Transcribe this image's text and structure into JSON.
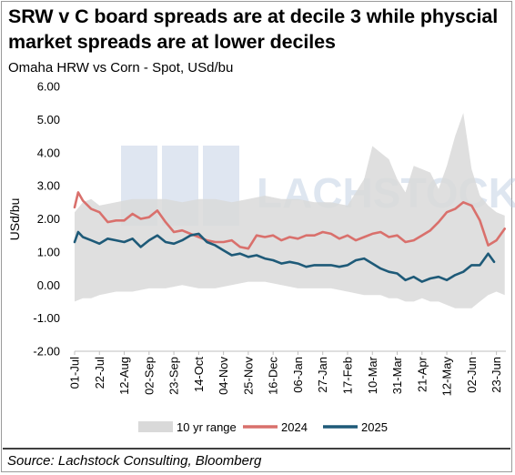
{
  "title": "SRW v C board spreads are at decile 3 while physcial market spreads are at lower deciles",
  "subtitle": "Omaha HRW vs Corn - Spot, USd/bu",
  "source": "Source: Lachstock Consulting, Bloomberg",
  "watermark": "LACHSTOCK",
  "colors": {
    "range": "#d9d9d9",
    "s2024": "#d9706c",
    "s2025": "#1e5a78",
    "watermark": "#b8c8e0"
  },
  "chart_data": {
    "type": "line",
    "ylabel": "USd/bu",
    "ylim": [
      -2,
      6
    ],
    "yticks": [
      "-2.00",
      "-1.00",
      "0.00",
      "1.00",
      "2.00",
      "3.00",
      "4.00",
      "5.00",
      "6.00"
    ],
    "x_days": 365,
    "x_tick_days": [
      0,
      21,
      42,
      63,
      84,
      105,
      126,
      147,
      168,
      189,
      210,
      231,
      252,
      273,
      294,
      315,
      336,
      357
    ],
    "x_tick_labels": [
      "01-Jul",
      "22-Jul",
      "12-Aug",
      "02-Sep",
      "23-Sep",
      "14-Oct",
      "04-Nov",
      "25-Nov",
      "16-Dec",
      "06-Jan",
      "27-Jan",
      "17-Feb",
      "10-Mar",
      "31-Mar",
      "21-Apr",
      "12-May",
      "02-Jun",
      "23-Jun"
    ],
    "legend_placement": "bottom",
    "series": [
      {
        "name": "10 yr range",
        "kind": "band",
        "x": [
          0,
          7,
          14,
          21,
          35,
          49,
          63,
          77,
          91,
          105,
          119,
          133,
          147,
          161,
          175,
          189,
          203,
          217,
          231,
          245,
          252,
          259,
          266,
          273,
          280,
          287,
          294,
          301,
          308,
          315,
          322,
          329,
          336,
          343,
          350,
          357,
          364
        ],
        "low": [
          -0.5,
          -0.4,
          -0.4,
          -0.3,
          -0.2,
          -0.2,
          -0.1,
          -0.1,
          0.0,
          -0.1,
          -0.1,
          0.0,
          0.1,
          0.1,
          0.0,
          -0.1,
          -0.1,
          -0.1,
          -0.2,
          -0.3,
          -0.3,
          -0.3,
          -0.4,
          -0.4,
          -0.5,
          -0.5,
          -0.4,
          -0.5,
          -0.5,
          -0.6,
          -0.7,
          -0.7,
          -0.7,
          -0.5,
          -0.3,
          -0.2,
          -0.3
        ],
        "high": [
          2.2,
          2.5,
          2.6,
          2.4,
          2.5,
          2.6,
          2.6,
          2.6,
          2.5,
          2.6,
          2.6,
          2.5,
          2.6,
          2.7,
          2.6,
          2.6,
          2.5,
          2.5,
          2.4,
          3.2,
          4.2,
          4.0,
          3.8,
          3.2,
          2.8,
          3.6,
          3.5,
          3.4,
          2.9,
          3.6,
          4.5,
          5.2,
          3.5,
          2.7,
          2.4,
          2.2,
          2.1
        ]
      },
      {
        "name": "2024",
        "kind": "line",
        "x": [
          0,
          3,
          7,
          14,
          21,
          28,
          35,
          42,
          49,
          56,
          63,
          70,
          77,
          84,
          91,
          98,
          105,
          112,
          119,
          126,
          133,
          140,
          147,
          154,
          161,
          168,
          175,
          182,
          189,
          196,
          203,
          210,
          217,
          224,
          231,
          238,
          245,
          252,
          259,
          266,
          273,
          280,
          287,
          294,
          301,
          308,
          315,
          322,
          329,
          336,
          343,
          350,
          357,
          364
        ],
        "y": [
          2.35,
          2.8,
          2.55,
          2.3,
          2.2,
          1.9,
          1.95,
          1.95,
          2.15,
          2.0,
          2.05,
          2.25,
          1.9,
          1.6,
          1.65,
          1.55,
          1.45,
          1.35,
          1.3,
          1.3,
          1.35,
          1.15,
          1.1,
          1.5,
          1.45,
          1.5,
          1.35,
          1.45,
          1.4,
          1.5,
          1.5,
          1.6,
          1.55,
          1.4,
          1.5,
          1.35,
          1.45,
          1.55,
          1.6,
          1.45,
          1.5,
          1.3,
          1.35,
          1.5,
          1.65,
          1.9,
          2.2,
          2.3,
          2.5,
          2.4,
          1.95,
          1.2,
          1.35,
          1.7
        ]
      },
      {
        "name": "2025",
        "kind": "line",
        "x": [
          0,
          3,
          7,
          14,
          21,
          28,
          35,
          42,
          49,
          56,
          63,
          70,
          77,
          84,
          91,
          98,
          105,
          112,
          119,
          126,
          133,
          140,
          147,
          154,
          161,
          168,
          175,
          182,
          189,
          196,
          203,
          210,
          217,
          224,
          231,
          238,
          245,
          252,
          259,
          266,
          273,
          280,
          287,
          294,
          301,
          308,
          315,
          322,
          329,
          336,
          343,
          350,
          355
        ],
        "y": [
          1.3,
          1.6,
          1.45,
          1.35,
          1.25,
          1.4,
          1.35,
          1.3,
          1.4,
          1.15,
          1.35,
          1.5,
          1.3,
          1.25,
          1.35,
          1.5,
          1.55,
          1.3,
          1.2,
          1.05,
          0.9,
          0.95,
          0.85,
          0.9,
          0.8,
          0.75,
          0.65,
          0.7,
          0.65,
          0.55,
          0.6,
          0.6,
          0.6,
          0.55,
          0.6,
          0.75,
          0.8,
          0.65,
          0.5,
          0.4,
          0.35,
          0.15,
          0.25,
          0.1,
          0.2,
          0.25,
          0.15,
          0.3,
          0.4,
          0.6,
          0.6,
          0.95,
          0.7
        ]
      }
    ]
  }
}
